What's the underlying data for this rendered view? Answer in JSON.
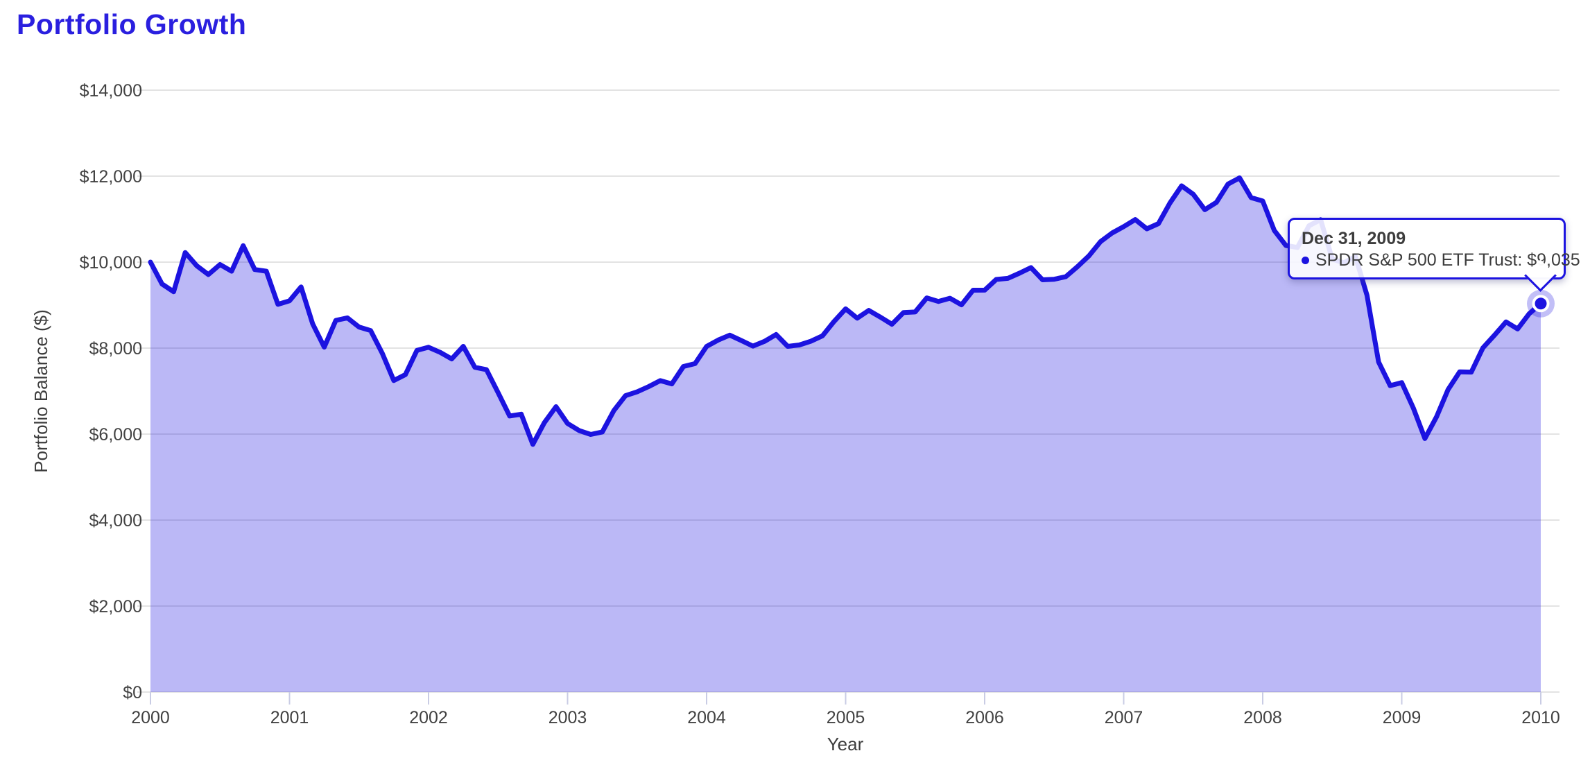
{
  "page": {
    "title": "Portfolio Growth"
  },
  "chart_data": {
    "type": "area",
    "title": "Portfolio Growth",
    "xlabel": "Year",
    "ylabel": "Portfolio Balance ($)",
    "grid": "horizontal",
    "legend_position": "none",
    "ylim": [
      0,
      14000
    ],
    "y_ticks": [
      0,
      2000,
      4000,
      6000,
      8000,
      10000,
      12000,
      14000
    ],
    "y_tick_labels": [
      "$0",
      "$2,000",
      "$4,000",
      "$6,000",
      "$8,000",
      "$10,000",
      "$12,000",
      "$14,000"
    ],
    "x_tick_labels": [
      "2000",
      "2001",
      "2002",
      "2003",
      "2004",
      "2005",
      "2006",
      "2007",
      "2008",
      "2009",
      "2010"
    ],
    "series": [
      {
        "name": "SPDR S&P 500 ETF Trust",
        "cadence": "monthly",
        "x_range": [
          "Jan 2000",
          "Dec 31, 2009"
        ],
        "values": [
          10000,
          9491,
          9312,
          10223,
          9915,
          9712,
          9944,
          9789,
          10383,
          9828,
          9789,
          9017,
          9100,
          9423,
          8564,
          8022,
          8645,
          8703,
          8491,
          8408,
          7882,
          7245,
          7383,
          7949,
          8019,
          7902,
          7749,
          8041,
          7554,
          7498,
          6964,
          6421,
          6463,
          5761,
          6268,
          6637,
          6247,
          6083,
          5992,
          6050,
          6549,
          6894,
          6982,
          7105,
          7244,
          7167,
          7572,
          7639,
          8039,
          8187,
          8301,
          8175,
          8047,
          8157,
          8316,
          8041,
          8073,
          8160,
          8285,
          8620,
          8913,
          8696,
          8878,
          8721,
          8555,
          8827,
          8840,
          9168,
          9085,
          9159,
          9006,
          9346,
          9349,
          9597,
          9623,
          9742,
          9873,
          9589,
          9602,
          9662,
          9892,
          10147,
          10478,
          10677,
          10826,
          10990,
          10774,
          10895,
          11378,
          11775,
          11579,
          11220,
          11388,
          11814,
          11960,
          11500,
          11421,
          10736,
          10387,
          10342,
          10846,
          10987,
          10069,
          9985,
          10130,
          9227,
          7678,
          7127,
          7197,
          6606,
          5897,
          6400,
          7036,
          7447,
          7442,
          8005,
          8300,
          8610,
          8445,
          8800,
          9035
        ]
      }
    ],
    "colors": {
      "line": "#1c13e0",
      "fill": "rgba(30,20,224,0.30)",
      "title": "#2a1fdf",
      "axis_text": "#424242",
      "gridline": "#e3e3e3"
    }
  },
  "tooltip": {
    "date": "Dec 31, 2009",
    "series_label": "SPDR S&P 500 ETF Trust",
    "separator": ": ",
    "value": "$9,035"
  }
}
